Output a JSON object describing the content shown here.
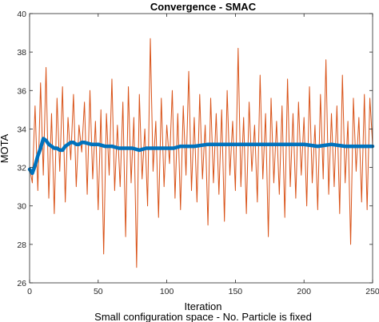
{
  "chart_data": {
    "type": "line",
    "title": "Convergence - SMAC",
    "xlabel": "Iteration",
    "xlabel2": "Small configuration space - No. Particle is fixed",
    "ylabel": "MOTA",
    "xlim": [
      0,
      250
    ],
    "ylim": [
      26,
      40
    ],
    "xticks": [
      "0",
      "50",
      "100",
      "150",
      "200",
      "250"
    ],
    "yticks": [
      "26",
      "28",
      "30",
      "32",
      "34",
      "36",
      "38",
      "40"
    ],
    "grid": false,
    "colors": {
      "raw": "#d95319",
      "smooth": "#0072bd"
    },
    "series": [
      {
        "role": "raw",
        "x": [
          0,
          2,
          4,
          6,
          8,
          10,
          12,
          14,
          16,
          18,
          20,
          22,
          24,
          26,
          28,
          30,
          32,
          34,
          36,
          38,
          40,
          42,
          44,
          46,
          48,
          50,
          52,
          54,
          56,
          58,
          60,
          62,
          64,
          66,
          68,
          70,
          72,
          74,
          76,
          78,
          80,
          82,
          84,
          86,
          88,
          90,
          92,
          94,
          96,
          98,
          100,
          102,
          104,
          106,
          108,
          110,
          112,
          114,
          116,
          118,
          120,
          122,
          124,
          126,
          128,
          130,
          132,
          134,
          136,
          138,
          140,
          142,
          144,
          146,
          148,
          150,
          152,
          154,
          156,
          158,
          160,
          162,
          164,
          166,
          168,
          170,
          172,
          174,
          176,
          178,
          180,
          182,
          184,
          186,
          188,
          190,
          192,
          194,
          196,
          198,
          200,
          202,
          204,
          206,
          208,
          210,
          212,
          214,
          216,
          218,
          220,
          222,
          224,
          226,
          228,
          230,
          232,
          234,
          236,
          238,
          240,
          242,
          244,
          246,
          248,
          250
        ],
        "values": [
          32.0,
          31.2,
          35.2,
          30.8,
          36.4,
          31.6,
          37.2,
          30.4,
          34.8,
          29.6,
          35.6,
          31.8,
          36.2,
          30.2,
          34.6,
          32.4,
          35.8,
          31.0,
          34.2,
          32.8,
          35.4,
          30.6,
          36.0,
          31.4,
          34.4,
          29.8,
          35.0,
          27.5,
          34.8,
          31.6,
          36.6,
          30.8,
          34.2,
          31.0,
          35.4,
          28.4,
          36.2,
          31.2,
          34.6,
          26.8,
          35.8,
          31.4,
          34.0,
          30.0,
          38.7,
          31.8,
          34.4,
          29.4,
          35.6,
          31.0,
          34.2,
          32.2,
          36.0,
          30.4,
          34.8,
          29.8,
          35.2,
          31.6,
          37.0,
          30.8,
          34.6,
          30.2,
          35.8,
          31.4,
          34.2,
          29.0,
          35.6,
          31.2,
          34.8,
          30.6,
          35.0,
          29.2,
          36.0,
          31.6,
          34.4,
          30.8,
          38.2,
          31.0,
          34.6,
          29.6,
          35.4,
          31.8,
          34.2,
          30.2,
          36.8,
          31.4,
          34.8,
          28.4,
          35.6,
          31.2,
          34.4,
          30.6,
          35.2,
          29.4,
          36.6,
          31.0,
          34.8,
          30.4,
          35.4,
          31.6,
          34.6,
          30.0,
          36.2,
          31.2,
          34.2,
          29.8,
          35.8,
          31.4,
          37.6,
          30.6,
          34.8,
          31.0,
          35.2,
          29.6,
          36.8,
          31.2,
          34.4,
          28.0,
          35.6,
          31.8,
          34.6,
          30.2,
          35.8,
          29.8,
          35.6,
          33.2
        ]
      },
      {
        "role": "smoothed",
        "x": [
          0,
          2,
          4,
          6,
          8,
          10,
          12,
          14,
          16,
          18,
          20,
          22,
          24,
          26,
          28,
          30,
          32,
          34,
          36,
          38,
          40,
          45,
          50,
          55,
          60,
          65,
          70,
          75,
          80,
          85,
          90,
          95,
          100,
          105,
          110,
          115,
          120,
          130,
          140,
          150,
          160,
          170,
          180,
          190,
          200,
          210,
          220,
          230,
          240,
          250
        ],
        "values": [
          31.9,
          31.7,
          32.1,
          32.6,
          33.0,
          33.5,
          33.4,
          33.2,
          33.1,
          33.0,
          33.0,
          32.9,
          32.9,
          33.1,
          33.2,
          33.3,
          33.3,
          33.2,
          33.2,
          33.3,
          33.3,
          33.2,
          33.2,
          33.1,
          33.1,
          33.0,
          33.0,
          33.0,
          32.9,
          33.0,
          33.0,
          33.0,
          33.0,
          33.0,
          33.1,
          33.1,
          33.1,
          33.2,
          33.2,
          33.2,
          33.2,
          33.2,
          33.2,
          33.2,
          33.2,
          33.1,
          33.2,
          33.1,
          33.1,
          33.1
        ]
      }
    ]
  }
}
